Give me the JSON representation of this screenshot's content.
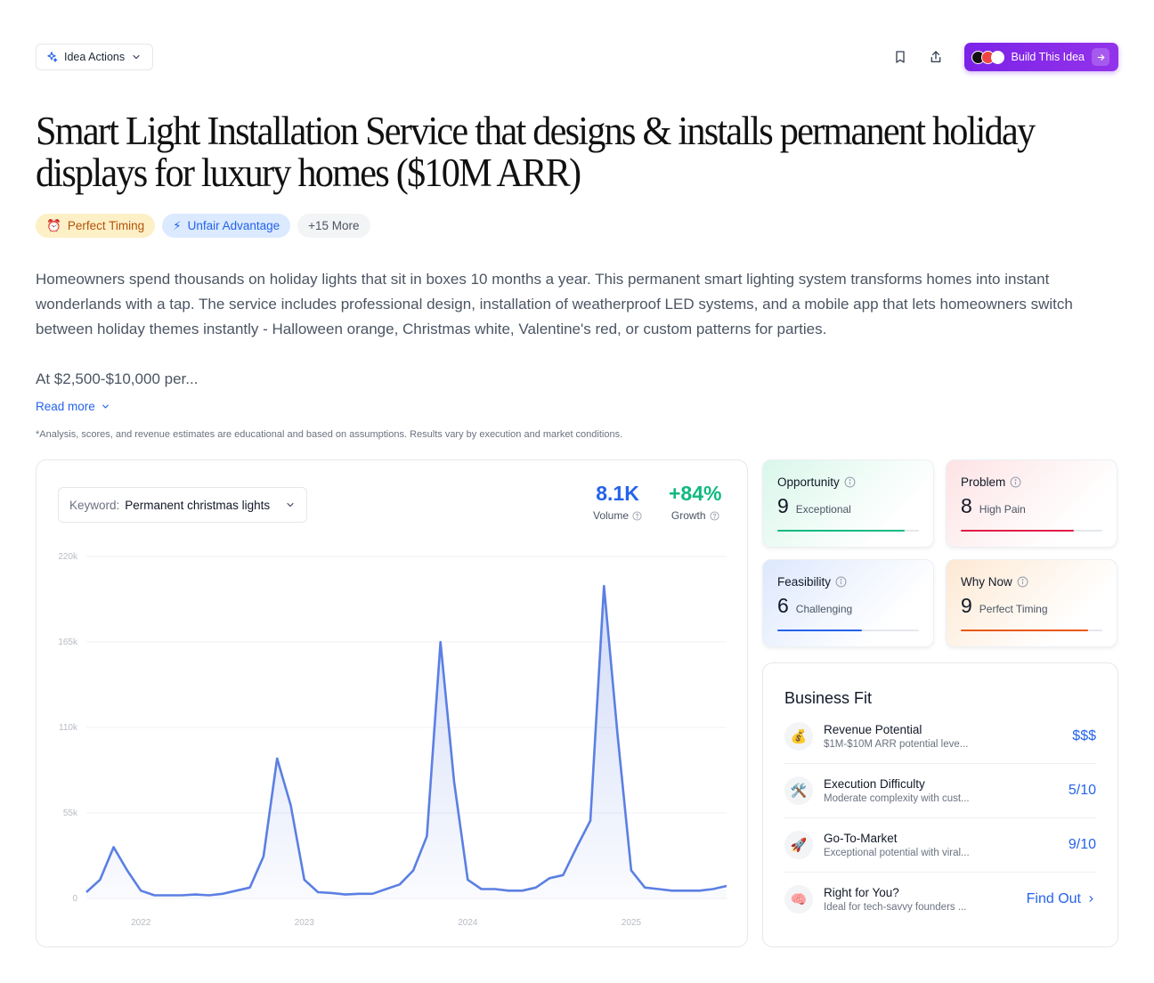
{
  "header": {
    "idea_actions_label": "Idea Actions",
    "build_label": "Build This Idea"
  },
  "title_line1": "Smart Light Installation Service that designs & installs permanent holiday",
  "title_line2": "displays for luxury homes ($10M ARR)",
  "tags": [
    {
      "icon": "⏰",
      "label": "Perfect Timing"
    },
    {
      "icon": "⚡",
      "label": "Unfair Advantage"
    },
    {
      "label": "+15 More"
    }
  ],
  "description": "Homeowners spend thousands on holiday lights that sit in boxes 10 months a year. This permanent smart lighting system transforms homes into instant wonderlands with a tap. The service includes professional design, installation of weatherproof LED systems, and a mobile app that lets homeowners switch between holiday themes instantly - Halloween orange, Christmas white, Valentine's red, or custom patterns for parties.",
  "description_more": "At $2,500-$10,000 per...",
  "read_more": "Read more",
  "disclaimer": "*Analysis, scores, and revenue estimates are educational and based on assumptions. Results vary by execution and market conditions.",
  "keyword": {
    "label": "Keyword:",
    "value": "Permanent christmas lights"
  },
  "metrics": {
    "volume_value": "8.1K",
    "volume_label": "Volume",
    "growth_value": "+84%",
    "growth_label": "Growth"
  },
  "colors": {
    "line": "#5b7fe3",
    "volume": "#2563eb",
    "growth": "#10b981",
    "opportunity": "#10b981",
    "problem": "#e11d48",
    "feasibility": "#2563eb",
    "why_now": "#ea580c"
  },
  "chart_data": {
    "type": "area",
    "ylim": [
      0,
      220000
    ],
    "y_ticks": [
      0,
      55000,
      110000,
      165000,
      220000
    ],
    "y_tick_labels": [
      "0",
      "55k",
      "110k",
      "165k",
      "220k"
    ],
    "x_tick_labels": [
      "2022",
      "2023",
      "2024",
      "2025"
    ],
    "x_tick_positions": [
      4,
      16,
      28,
      40
    ],
    "values": [
      4000,
      12000,
      33000,
      18000,
      5000,
      2000,
      2000,
      2000,
      2500,
      2000,
      3000,
      5000,
      7000,
      27000,
      90000,
      60000,
      12000,
      4000,
      3500,
      2500,
      3000,
      3000,
      6000,
      9000,
      18000,
      40000,
      165000,
      75000,
      12000,
      6000,
      6000,
      5000,
      5000,
      7000,
      13000,
      15000,
      33000,
      50000,
      201000,
      105000,
      18000,
      7000,
      6000,
      5000,
      5000,
      5000,
      6000,
      8000
    ]
  },
  "scores": [
    {
      "title": "Opportunity",
      "num": "9",
      "word": "Exceptional",
      "fraction": 0.9
    },
    {
      "title": "Problem",
      "num": "8",
      "word": "High Pain",
      "fraction": 0.8
    },
    {
      "title": "Feasibility",
      "num": "6",
      "word": "Challenging",
      "fraction": 0.6
    },
    {
      "title": "Why Now",
      "num": "9",
      "word": "Perfect Timing",
      "fraction": 0.9
    }
  ],
  "business_fit": {
    "title": "Business Fit",
    "rows": [
      {
        "icon": "💰",
        "name": "Revenue Potential",
        "sub": "$1M-$10M ARR potential leve...",
        "value": "$$$"
      },
      {
        "icon": "🛠️",
        "name": "Execution Difficulty",
        "sub": "Moderate complexity with cust...",
        "value": "5/10"
      },
      {
        "icon": "🚀",
        "name": "Go-To-Market",
        "sub": "Exceptional potential with viral...",
        "value": "9/10"
      },
      {
        "icon": "🧠",
        "name": "Right for You?",
        "sub": "Ideal for tech-savvy founders ...",
        "value": "Find Out"
      }
    ]
  }
}
